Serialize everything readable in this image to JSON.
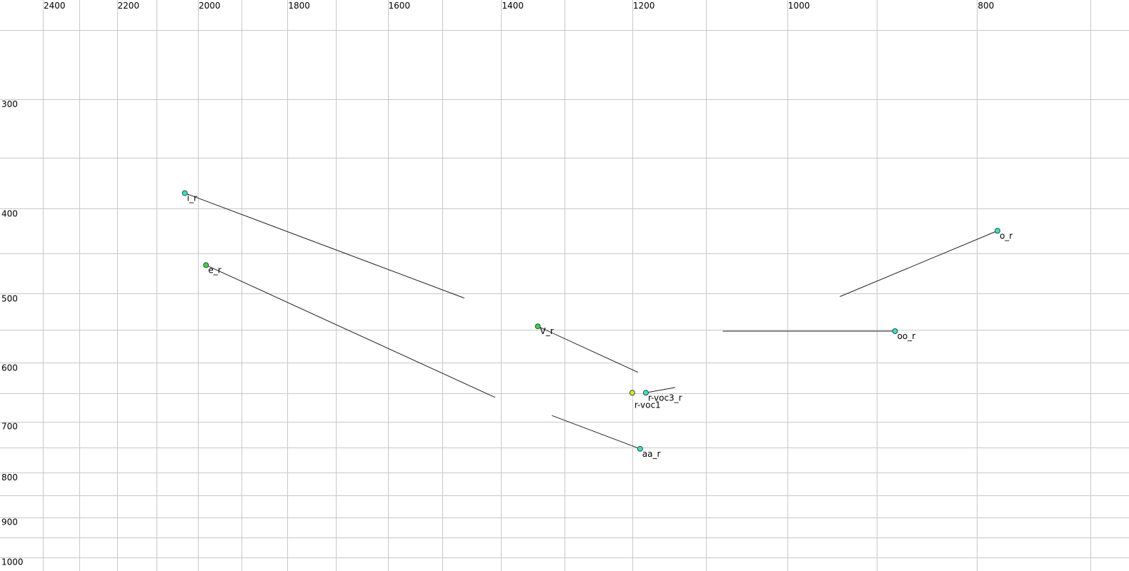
{
  "chart_data": {
    "type": "scatter",
    "title": "",
    "xlabel": "",
    "ylabel": "",
    "x_axis": {
      "direction": "reversed",
      "scale": "log",
      "range": [
        2400,
        700
      ],
      "tick_labels": [
        "2400",
        "2200",
        "2000",
        "1800",
        "1600",
        "1400",
        "1200",
        "1000",
        "800"
      ],
      "ticks": [
        2400,
        2200,
        2000,
        1800,
        1600,
        1400,
        1200,
        1000,
        800
      ],
      "gridlines": [
        2400,
        2300,
        2200,
        2100,
        2000,
        1900,
        1800,
        1700,
        1600,
        1500,
        1400,
        1300,
        1200,
        1100,
        1000,
        900,
        800,
        700
      ]
    },
    "y_axis": {
      "direction": "downward",
      "scale": "log",
      "range": [
        250,
        1000
      ],
      "tick_labels": [
        "300",
        "400",
        "500",
        "600",
        "700",
        "800",
        "900",
        "1000"
      ],
      "ticks": [
        300,
        400,
        500,
        600,
        700,
        800,
        900,
        1000
      ],
      "gridlines": [
        250,
        300,
        350,
        400,
        450,
        500,
        550,
        600,
        650,
        700,
        750,
        800,
        850,
        900,
        950,
        1000
      ]
    },
    "grid": true,
    "grid_color": "#c8c8c8",
    "points": [
      {
        "label": "i_r",
        "x": 2031,
        "y": 384,
        "color": "#40e0c0",
        "trail_end": {
          "x": 1462,
          "y": 506
        }
      },
      {
        "label": "e_r",
        "x": 1981,
        "y": 464,
        "color": "#40d040",
        "trail_end": {
          "x": 1410,
          "y": 657
        }
      },
      {
        "label": "V_r",
        "x": 1341,
        "y": 545,
        "color": "#40d040",
        "trail_end": {
          "x": 1192,
          "y": 615
        }
      },
      {
        "label": "r-voc1",
        "x": 1200,
        "y": 649,
        "color": "#f0e020",
        "trail_end": null
      },
      {
        "label": "r-voc3_r",
        "x": 1181,
        "y": 649,
        "color": "#40e0c0",
        "trail_end": {
          "x": 1141,
          "y": 640
        }
      },
      {
        "label": "aa_r",
        "x": 1189,
        "y": 752,
        "color": "#40e0c0",
        "trail_end": {
          "x": 1319,
          "y": 689
        }
      },
      {
        "label": "oo_r",
        "x": 881,
        "y": 552,
        "color": "#40e0c0",
        "trail_end": {
          "x": 1079,
          "y": 552
        }
      },
      {
        "label": "o_r",
        "x": 781,
        "y": 424,
        "color": "#40e0c0",
        "trail_end": {
          "x": 940,
          "y": 504
        }
      }
    ]
  }
}
